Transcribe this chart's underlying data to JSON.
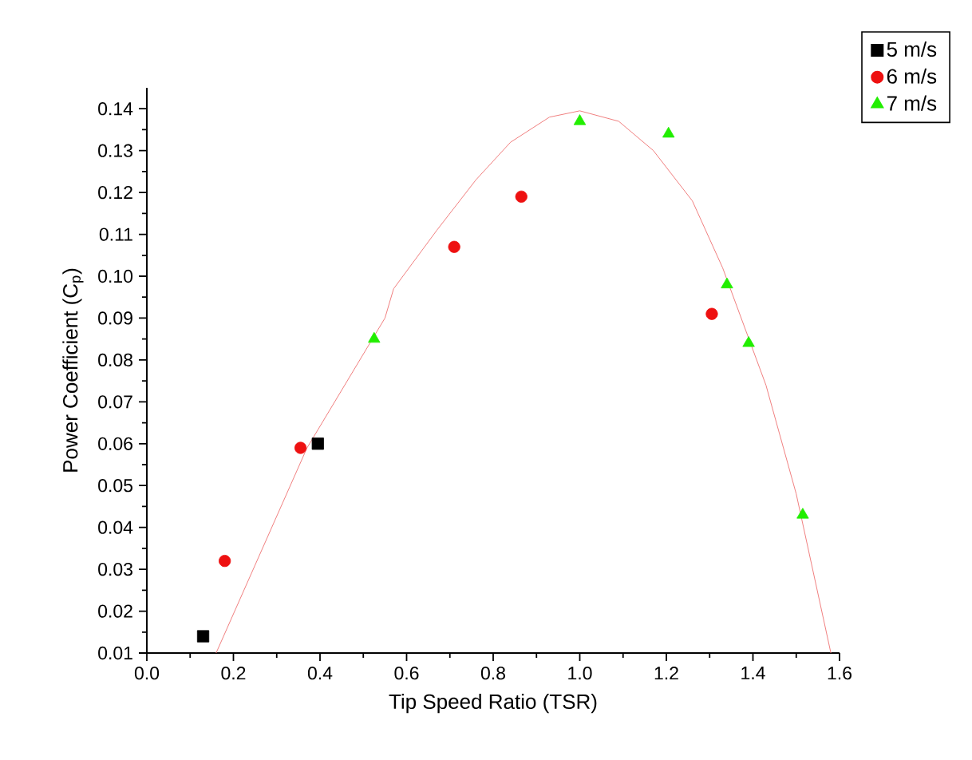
{
  "chart_data": {
    "type": "scatter",
    "xlabel": "Tip Speed Ratio (TSR)",
    "ylabel": "Power Coefficient (C$_{p}$)",
    "xlim": [
      0,
      1.6
    ],
    "ylim": [
      0.01,
      0.145
    ],
    "xticks": [
      {
        "value": 0,
        "label": "0.0"
      },
      0.2,
      0.4,
      0.6,
      0.8,
      {
        "value": 1,
        "label": "1.0"
      },
      1.2,
      1.4,
      1.6
    ],
    "yticks": [
      0.01,
      0.02,
      0.03,
      0.04,
      0.05,
      0.06,
      0.07,
      0.08,
      0.09,
      {
        "value": 0.1,
        "label": "0.10"
      },
      0.11,
      0.12,
      0.13,
      0.14
    ],
    "legend": "top right",
    "grid": false,
    "series": [
      {
        "name": "5 m/s",
        "color": "#000000",
        "marker": "square",
        "x": [
          0.13,
          0.395
        ],
        "values": [
          0.014,
          0.06
        ]
      },
      {
        "name": "6 m/s",
        "color": "#ee1111",
        "marker": "circle",
        "x": [
          0.18,
          0.355,
          0.71,
          0.865,
          1.305
        ],
        "values": [
          0.032,
          0.059,
          0.107,
          0.119,
          0.091
        ]
      },
      {
        "name": "7 m/s",
        "color": "#22ee00",
        "marker": "triangle",
        "x": [
          0.525,
          1.0,
          1.205,
          1.34,
          1.39,
          1.515
        ],
        "values": [
          0.085,
          0.137,
          0.134,
          0.098,
          0.084,
          0.043
        ]
      },
      {
        "type": "line",
        "color": "#f08080",
        "marker": "none",
        "x": [
          0.16,
          0.37,
          0.55,
          0.57,
          0.67,
          0.76,
          0.84,
          0.93,
          1.0,
          1.09,
          1.17,
          1.26,
          1.33,
          1.43,
          1.5,
          1.58
        ],
        "values": [
          0.01,
          0.059,
          0.09,
          0.097,
          0.111,
          0.123,
          0.132,
          0.138,
          0.1395,
          0.137,
          0.13,
          0.118,
          0.102,
          0.074,
          0.048,
          0.01
        ]
      }
    ]
  }
}
